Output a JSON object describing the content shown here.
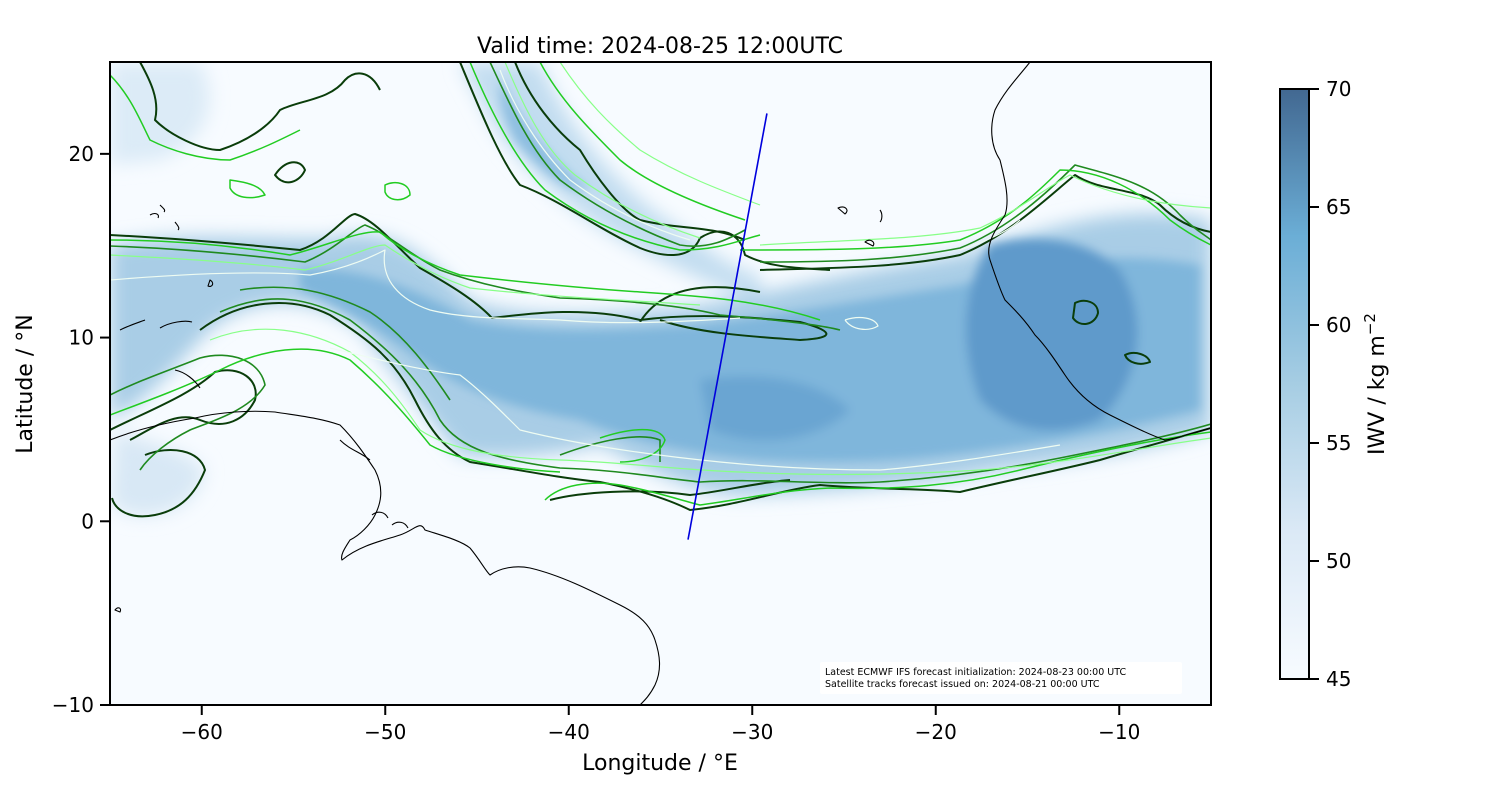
{
  "title": "Valid time: 2024-08-25 12:00UTC",
  "map": {
    "xlabel": "Longitude / °E",
    "ylabel": "Latitude / °N",
    "xlim": [
      -65,
      -5
    ],
    "ylim": [
      -10,
      25
    ],
    "xticks": [
      {
        "value": -60,
        "label": "−60"
      },
      {
        "value": -50,
        "label": "−50"
      },
      {
        "value": -40,
        "label": "−40"
      },
      {
        "value": -30,
        "label": "−30"
      },
      {
        "value": -20,
        "label": "−20"
      },
      {
        "value": -10,
        "label": "−10"
      }
    ],
    "yticks": [
      {
        "value": -10,
        "label": "−10"
      },
      {
        "value": 0,
        "label": "0"
      },
      {
        "value": 10,
        "label": "10"
      },
      {
        "value": 20,
        "label": "20"
      }
    ],
    "satellite_track": {
      "start": [
        -33.5,
        -1.0
      ],
      "end": [
        -29.2,
        22.2
      ],
      "color": "#0000dd"
    },
    "contour_colors": [
      "#0a3d0a",
      "#1f8a1f",
      "#22cc22",
      "#88ff88",
      "#e8fff0"
    ],
    "info_lines": [
      "Latest ECMWF IFS forecast initialization: 2024-08-23 00:00 UTC",
      "Satellite tracks forecast issued on: 2024-08-21 00:00 UTC"
    ]
  },
  "colorbar": {
    "label": "IWV / kg m",
    "label_superscript": "−2",
    "min": 45,
    "max": 70,
    "ticks": [
      {
        "value": 45,
        "label": "45"
      },
      {
        "value": 50,
        "label": "50"
      },
      {
        "value": 55,
        "label": "55"
      },
      {
        "value": 60,
        "label": "60"
      },
      {
        "value": 65,
        "label": "65"
      },
      {
        "value": 70,
        "label": "70"
      }
    ],
    "color_low": "#f7fbff",
    "color_mid": "#6baed6",
    "color_high": "#426891"
  }
}
